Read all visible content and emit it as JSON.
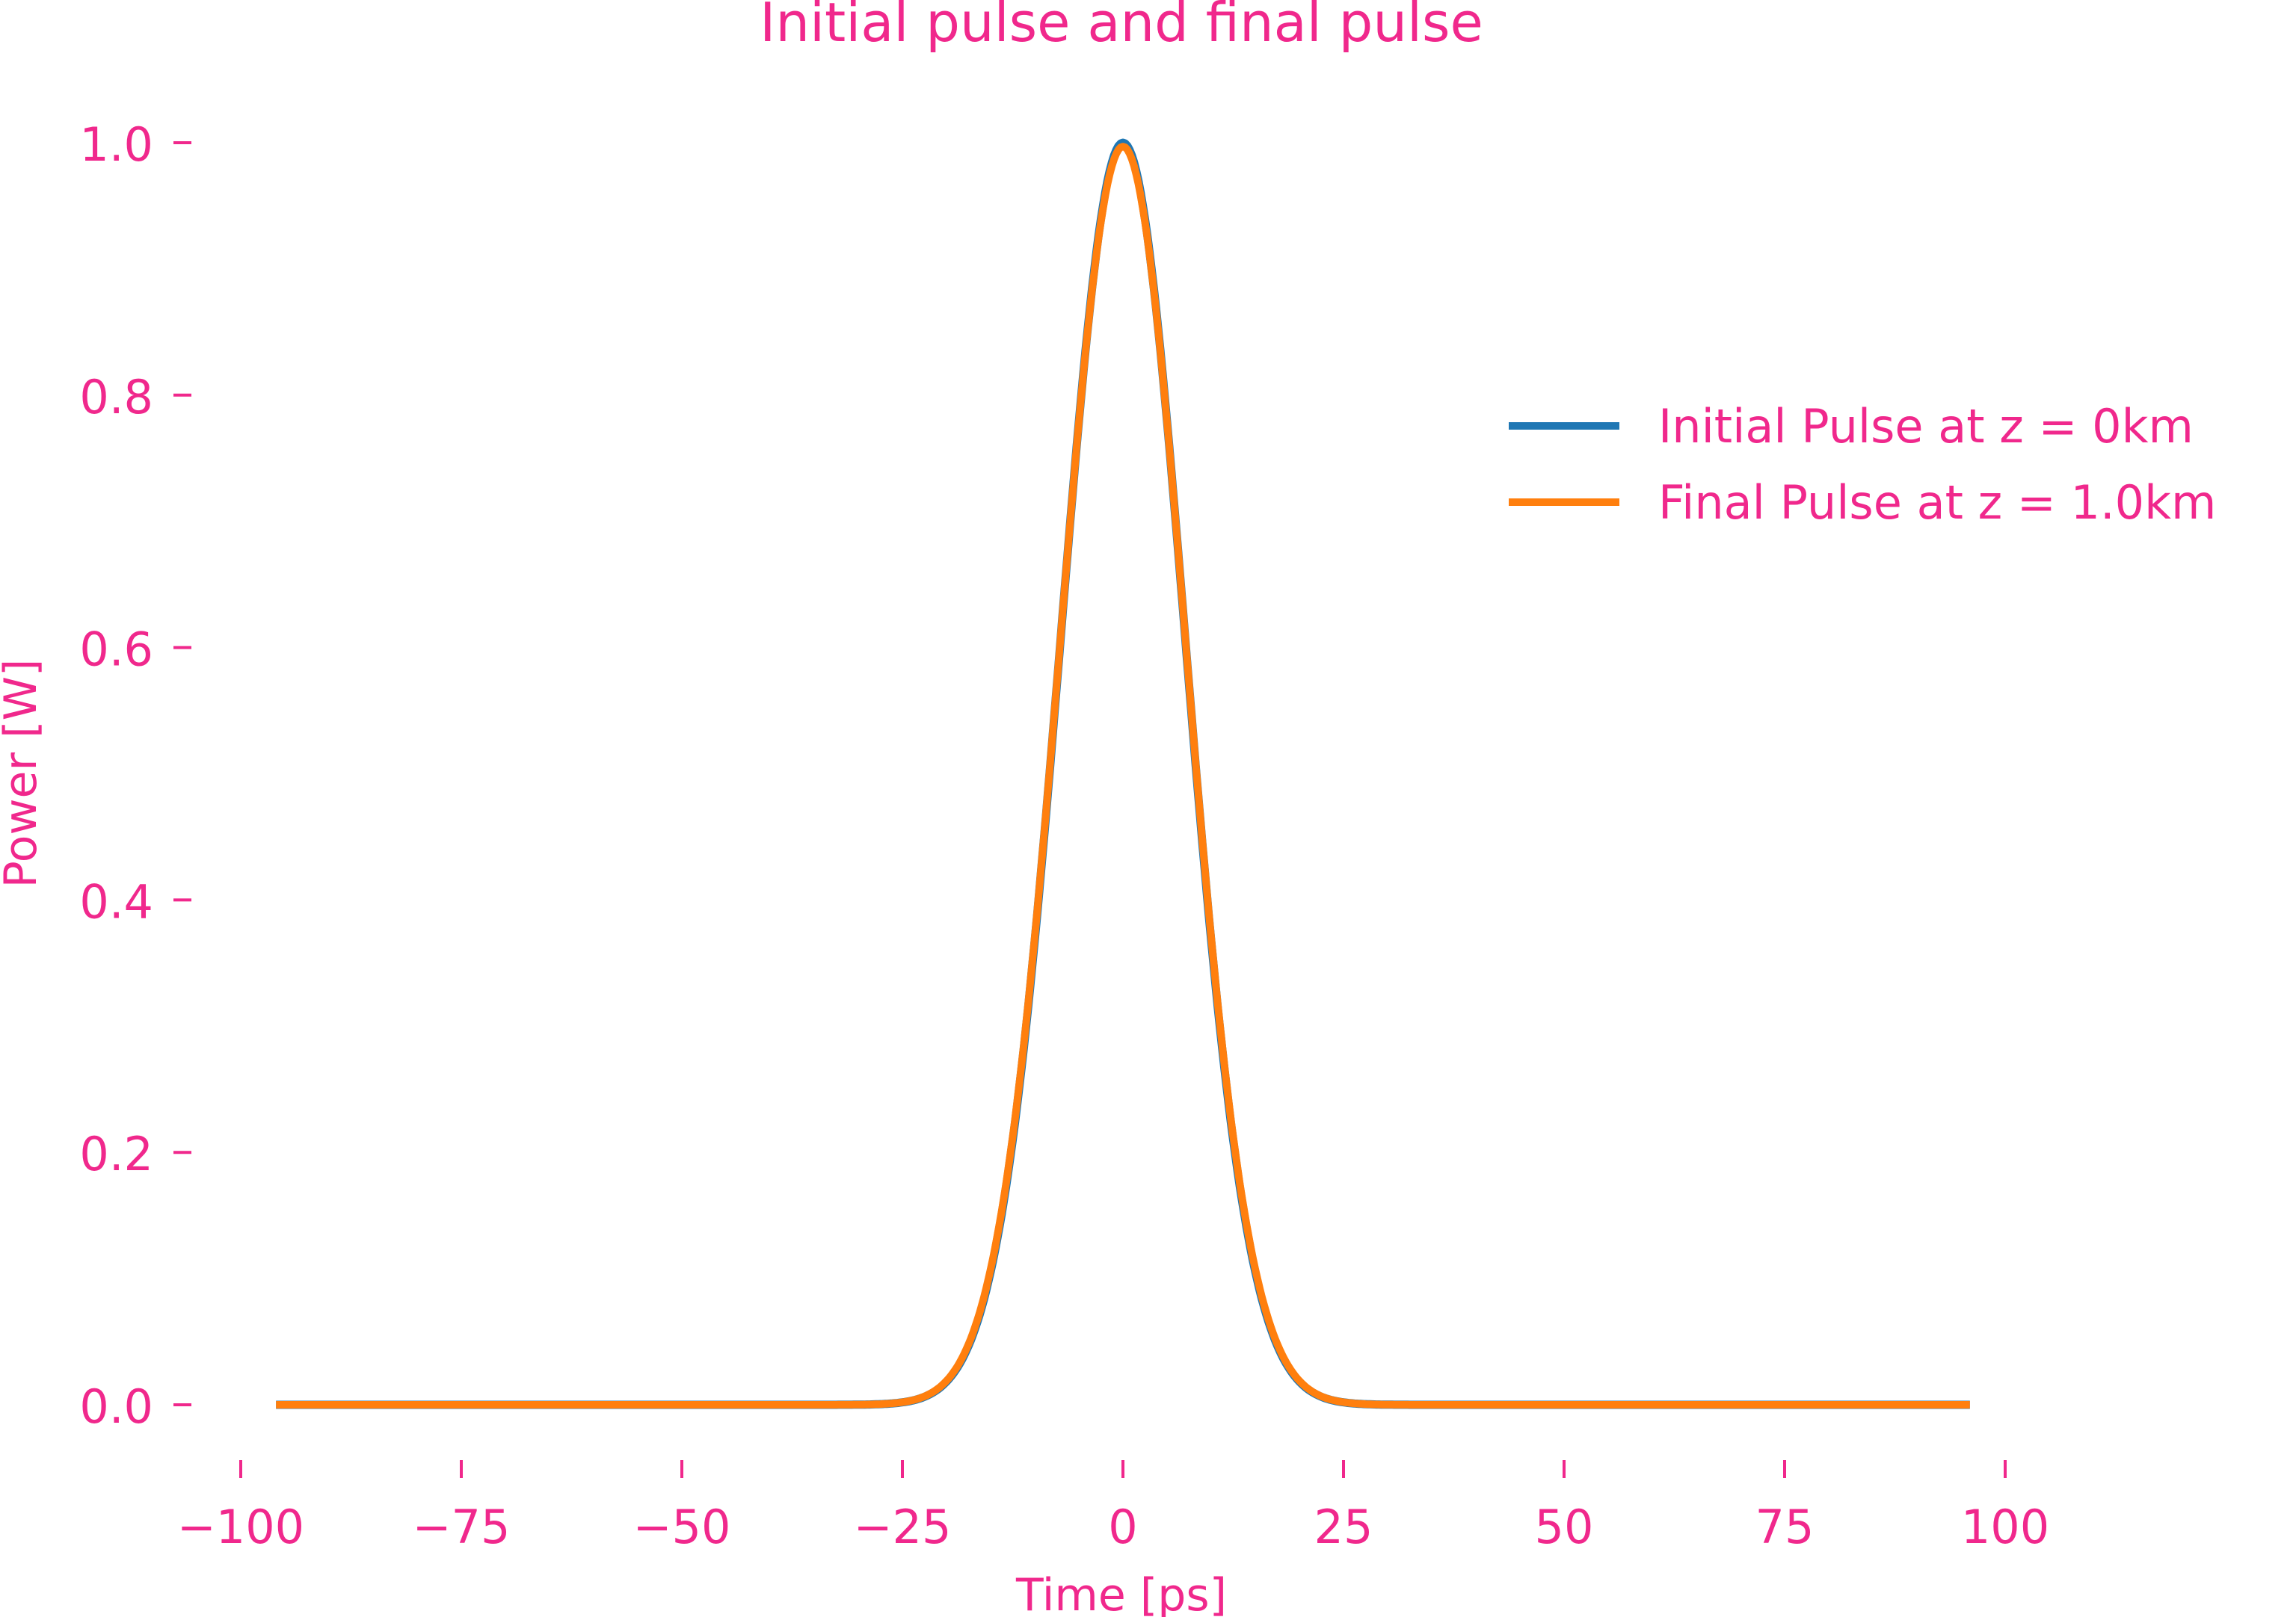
{
  "chart_data": {
    "type": "line",
    "title": "Initial pulse and final pulse",
    "xlabel": "Time [ps]",
    "ylabel": "Power [W]",
    "xlim": [
      -105,
      105
    ],
    "ylim": [
      -0.05,
      1.02
    ],
    "xticks": [
      -100,
      -75,
      -50,
      -25,
      0,
      25,
      50,
      75,
      100
    ],
    "xtick_labels": [
      "−100",
      "−75",
      "−50",
      "−25",
      "0",
      "25",
      "50",
      "75",
      "100"
    ],
    "yticks": [
      0.0,
      0.2,
      0.4,
      0.6,
      0.8,
      1.0
    ],
    "ytick_labels": [
      "0.0",
      "0.2",
      "0.4",
      "0.6",
      "0.8",
      "1.0"
    ],
    "grid": false,
    "legend_position": "upper-right",
    "series": [
      {
        "name": "Initial Pulse at z = 0km",
        "color": "#1f77b4",
        "shape": "gaussian",
        "peak_power": 1.0,
        "center": 0,
        "T0": 10,
        "t_range": [
          -96,
          96
        ]
      },
      {
        "name": "Final Pulse at z = 1.0km",
        "color": "#ff7f0e",
        "shape": "gaussian",
        "peak_power": 0.997,
        "center": 0,
        "T0": 10.05,
        "t_range": [
          -96,
          96
        ]
      }
    ],
    "text_color": "#f0288c"
  }
}
